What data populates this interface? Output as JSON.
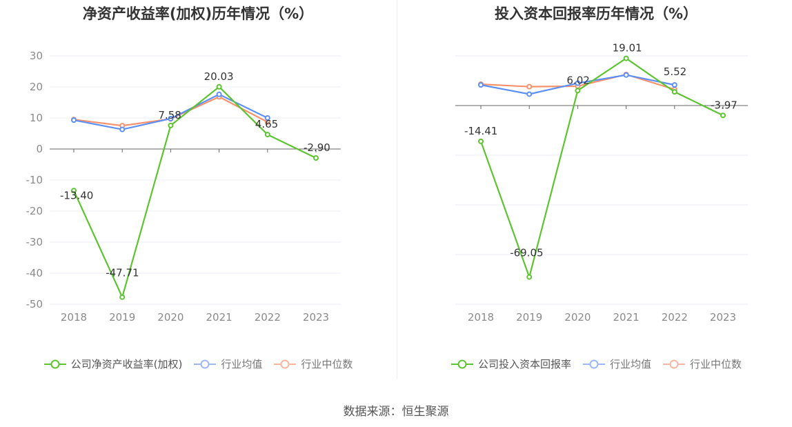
{
  "colors": {
    "company": "#5bc42f",
    "avg": "#5b8ff9",
    "median": "#f6916b",
    "grid": "#e9edf5",
    "axis": "#666666"
  },
  "source": "数据来源：恒生聚源",
  "chart_data": [
    {
      "type": "line",
      "title": "净资产收益率(加权)历年情况（%）",
      "categories": [
        "2018",
        "2019",
        "2020",
        "2021",
        "2022",
        "2023"
      ],
      "ylim": [
        -50,
        30
      ],
      "yticks": [
        "30",
        "20",
        "10",
        "0",
        "-10",
        "-20",
        "-30",
        "-40",
        "-50"
      ],
      "series": [
        {
          "name": "公司净资产收益率(加权)",
          "values": [
            -13.4,
            -47.71,
            7.58,
            20.03,
            4.65,
            -2.9
          ],
          "labels": [
            "-13.40",
            "-47.71",
            "7.58",
            "20.03",
            "4.65",
            "-2.90"
          ]
        },
        {
          "name": "行业均值",
          "values": [
            9.3,
            6.3,
            9.8,
            17.6,
            10.0,
            null
          ]
        },
        {
          "name": "行业中位数",
          "values": [
            9.5,
            7.5,
            9.7,
            16.8,
            8.7,
            null
          ]
        }
      ]
    },
    {
      "type": "line",
      "title": "投入资本回报率历年情况（%）",
      "categories": [
        "2018",
        "2019",
        "2020",
        "2021",
        "2022",
        "2023"
      ],
      "ylim": [
        -80,
        20
      ],
      "yticks": [
        "20",
        "0",
        "-20",
        "-40",
        "-60",
        "-80"
      ],
      "series": [
        {
          "name": "公司投入资本回报率",
          "values": [
            -14.41,
            -69.05,
            6.02,
            19.01,
            5.52,
            -3.97
          ],
          "labels": [
            "-14.41",
            "-69.05",
            "6.02",
            "19.01",
            "5.52",
            "-3.97"
          ]
        },
        {
          "name": "行业均值",
          "values": [
            8.3,
            4.6,
            9.0,
            12.3,
            8.3,
            null
          ]
        },
        {
          "name": "行业中位数",
          "values": [
            8.6,
            7.6,
            7.8,
            12.5,
            6.5,
            null
          ]
        }
      ]
    }
  ]
}
